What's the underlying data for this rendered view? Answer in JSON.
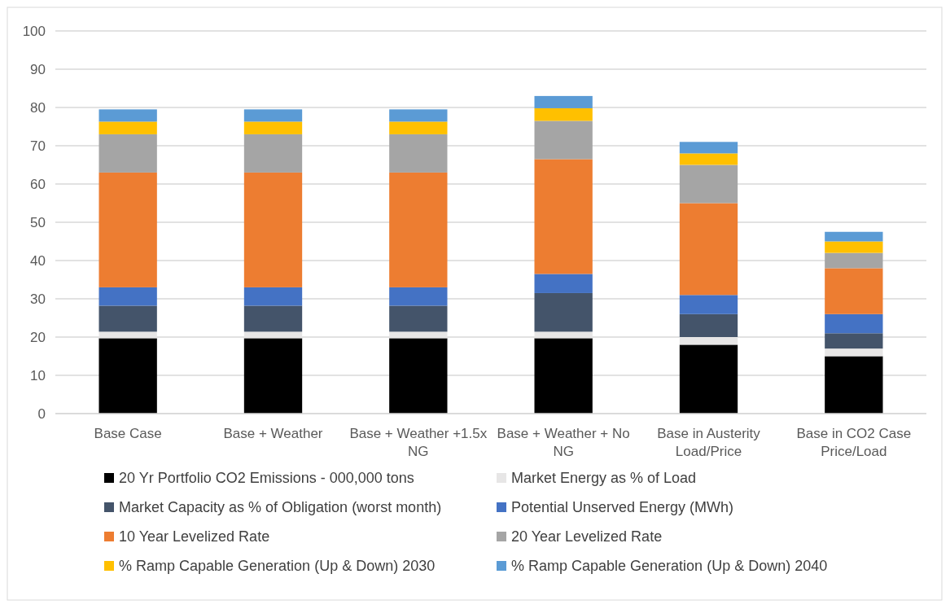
{
  "chart_data": {
    "type": "bar",
    "stacked": true,
    "categories": [
      "Base Case",
      "Base + Weather",
      "Base + Weather +1.5x NG",
      "Base + Weather + No NG",
      "Base in Austerity Load/Price",
      "Base in CO2 Case Price/Load"
    ],
    "series": [
      {
        "name": "20 Yr Portfolio CO2 Emissions - 000,000 tons",
        "color": "#000000",
        "values": [
          19.7,
          19.7,
          19.7,
          19.7,
          18,
          15
        ]
      },
      {
        "name": "Market Energy as % of Load",
        "color": "#e7e6e6",
        "values": [
          1.7,
          1.7,
          1.7,
          1.7,
          2,
          2
        ]
      },
      {
        "name": "Market Capacity as % of Obligation (worst month)",
        "color": "#44546a",
        "values": [
          6.8,
          6.8,
          6.8,
          10.1,
          6,
          4
        ]
      },
      {
        "name": "Potential Unserved Energy (MWh)",
        "color": "#4472c4",
        "values": [
          4.8,
          4.8,
          4.8,
          5,
          5,
          5
        ]
      },
      {
        "name": "10 Year Levelized Rate",
        "color": "#ed7d31",
        "values": [
          30,
          30,
          30,
          30,
          24,
          12
        ]
      },
      {
        "name": "20 Year Levelized Rate",
        "color": "#a5a5a5",
        "values": [
          10,
          10,
          10,
          10,
          10,
          4
        ]
      },
      {
        "name": "% Ramp Capable Generation (Up & Down) 2030",
        "color": "#ffc000",
        "values": [
          3.3,
          3.3,
          3.3,
          3.3,
          3,
          3
        ]
      },
      {
        "name": "% Ramp Capable Generation  (Up & Down) 2040",
        "color": "#5b9bd5",
        "values": [
          3.2,
          3.2,
          3.2,
          3.2,
          3,
          2.5
        ]
      }
    ],
    "ylim": [
      0,
      100
    ],
    "yticks": [
      0,
      10,
      20,
      30,
      40,
      50,
      60,
      70,
      80,
      90,
      100
    ],
    "grid": "y",
    "legend": "bottom"
  }
}
